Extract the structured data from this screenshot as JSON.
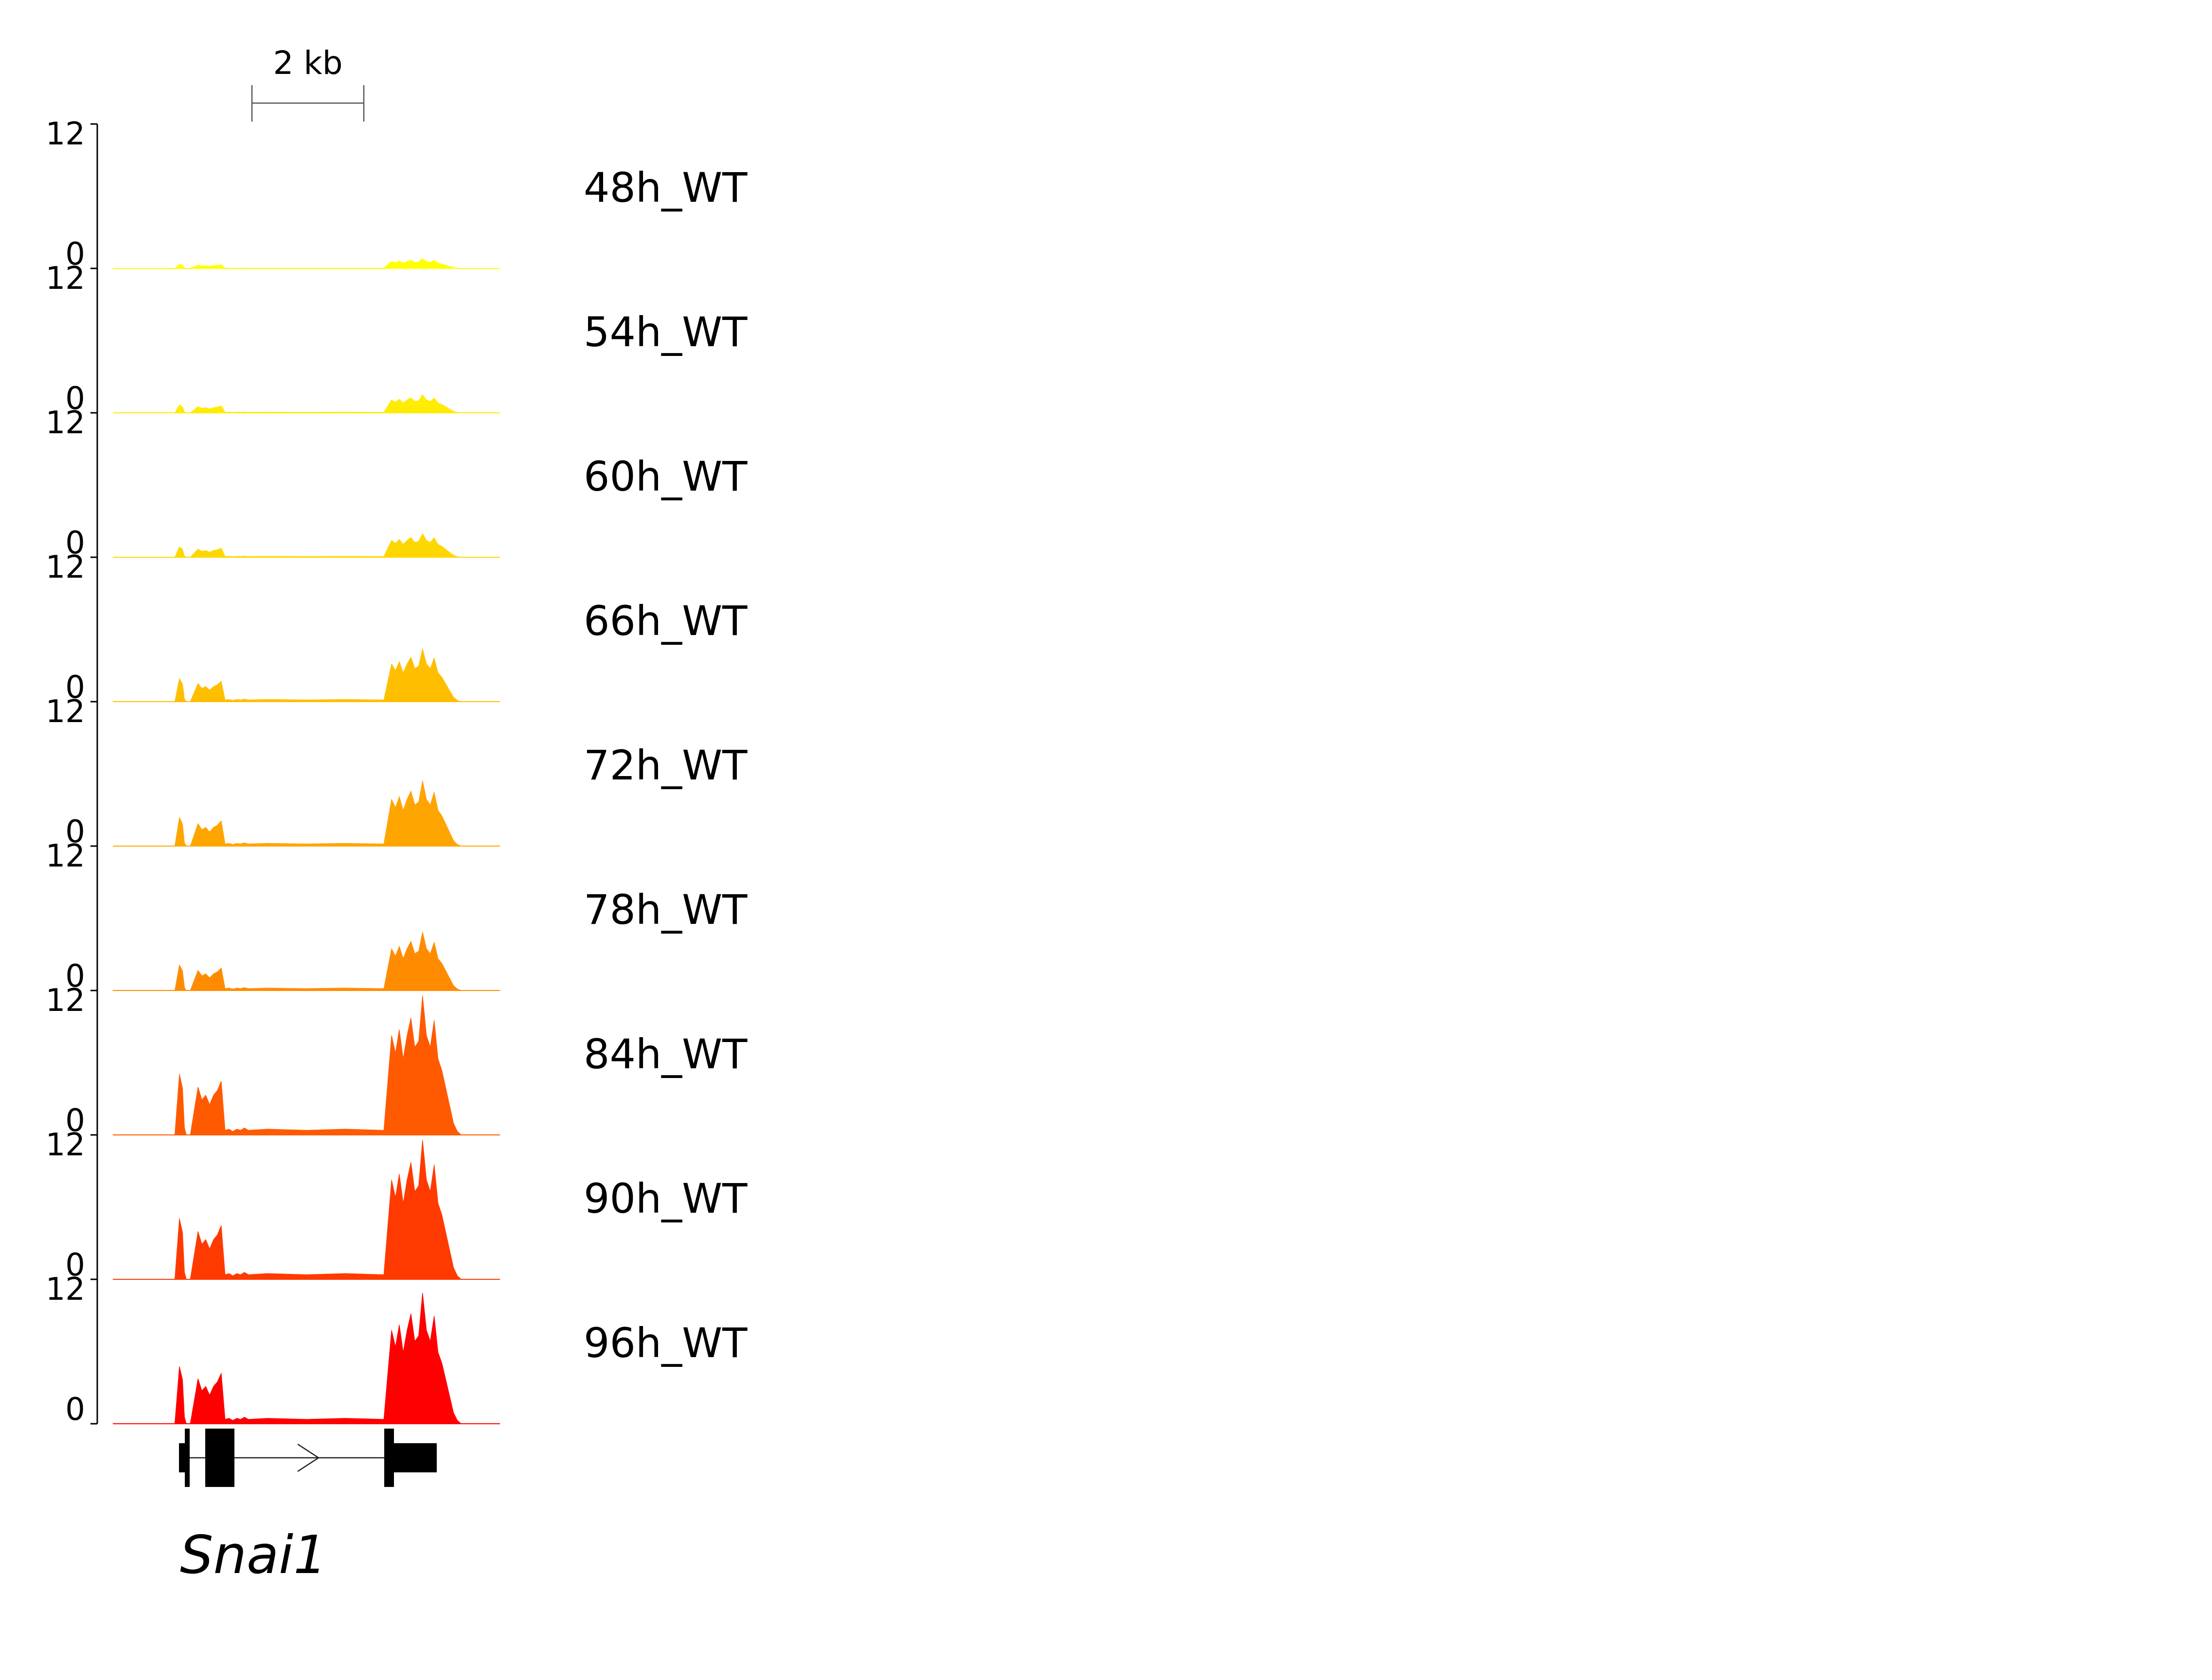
{
  "chart_data": {
    "type": "area",
    "scale_bar": {
      "label": "2 kb"
    },
    "y_axis": {
      "ticks": [
        "12",
        "0"
      ],
      "ylim": [
        0,
        12
      ]
    },
    "gene": {
      "name": "Snai1",
      "strand": "+"
    },
    "x_profile": [
      0,
      0.1,
      0.16,
      0.172,
      0.18,
      0.185,
      0.19,
      0.2,
      0.22,
      0.23,
      0.24,
      0.25,
      0.26,
      0.27,
      0.28,
      0.29,
      0.3,
      0.31,
      0.32,
      0.33,
      0.34,
      0.35,
      0.4,
      0.5,
      0.6,
      0.7,
      0.71,
      0.72,
      0.73,
      0.74,
      0.75,
      0.76,
      0.77,
      0.78,
      0.79,
      0.8,
      0.81,
      0.82,
      0.83,
      0.84,
      0.85,
      0.86,
      0.87,
      0.88,
      0.89,
      0.9,
      1.0
    ],
    "tracks": [
      {
        "label": "48h_WT",
        "color": "#ffff00",
        "scale": 0.07
      },
      {
        "label": "54h_WT",
        "color": "#ffec00",
        "scale": 0.13
      },
      {
        "label": "60h_WT",
        "color": "#ffd700",
        "scale": 0.17
      },
      {
        "label": "66h_WT",
        "color": "#ffbf00",
        "scale": 0.38
      },
      {
        "label": "72h_WT",
        "color": "#ffa500",
        "scale": 0.47
      },
      {
        "label": "78h_WT",
        "color": "#ff8c00",
        "scale": 0.42
      },
      {
        "label": "84h_WT",
        "color": "#ff5a00",
        "scale": 1.0
      },
      {
        "label": "90h_WT",
        "color": "#ff3a00",
        "scale": 1.0
      },
      {
        "label": "96h_WT",
        "color": "#ff0000",
        "scale": 0.94
      }
    ],
    "signal_profile": [
      0,
      0,
      0,
      5.2,
      4.0,
      0.6,
      0,
      0,
      4.1,
      3.0,
      3.4,
      2.6,
      3.4,
      3.8,
      4.6,
      0.4,
      0.5,
      0.3,
      0.5,
      0.4,
      0.6,
      0.4,
      0.5,
      0.4,
      0.5,
      0.4,
      4.5,
      8.5,
      7.0,
      9.0,
      6.5,
      8.5,
      10.0,
      7.5,
      8.0,
      11.9,
      8.5,
      7.5,
      9.8,
      6.5,
      5.5,
      4.0,
      2.5,
      1.0,
      0.3,
      0,
      0
    ]
  }
}
